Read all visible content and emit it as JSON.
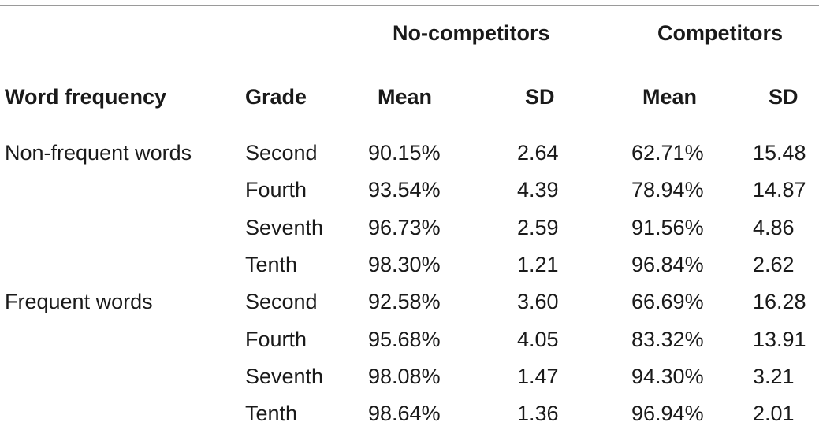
{
  "table": {
    "group_headers": {
      "no_competitors": "No-competitors",
      "competitors": "Competitors"
    },
    "column_headers": {
      "word_frequency": "Word frequency",
      "grade": "Grade",
      "nc_mean": "Mean",
      "nc_sd": "SD",
      "c_mean": "Mean",
      "c_sd": "SD"
    },
    "rows": [
      {
        "freq": "Non-frequent words",
        "grade": "Second",
        "nc_mean": "90.15%",
        "nc_sd": "2.64",
        "c_mean": "62.71%",
        "c_sd": "15.48"
      },
      {
        "freq": "",
        "grade": "Fourth",
        "nc_mean": "93.54%",
        "nc_sd": "4.39",
        "c_mean": "78.94%",
        "c_sd": "14.87"
      },
      {
        "freq": "",
        "grade": "Seventh",
        "nc_mean": "96.73%",
        "nc_sd": "2.59",
        "c_mean": "91.56%",
        "c_sd": "4.86"
      },
      {
        "freq": "",
        "grade": "Tenth",
        "nc_mean": "98.30%",
        "nc_sd": "1.21",
        "c_mean": "96.84%",
        "c_sd": "2.62"
      },
      {
        "freq": "Frequent words",
        "grade": "Second",
        "nc_mean": "92.58%",
        "nc_sd": "3.60",
        "c_mean": "66.69%",
        "c_sd": "16.28"
      },
      {
        "freq": "",
        "grade": "Fourth",
        "nc_mean": "95.68%",
        "nc_sd": "4.05",
        "c_mean": "83.32%",
        "c_sd": "13.91"
      },
      {
        "freq": "",
        "grade": "Seventh",
        "nc_mean": "98.08%",
        "nc_sd": "1.47",
        "c_mean": "94.30%",
        "c_sd": "3.21"
      },
      {
        "freq": "",
        "grade": "Tenth",
        "nc_mean": "98.64%",
        "nc_sd": "1.36",
        "c_mean": "96.94%",
        "c_sd": "2.01"
      }
    ]
  }
}
